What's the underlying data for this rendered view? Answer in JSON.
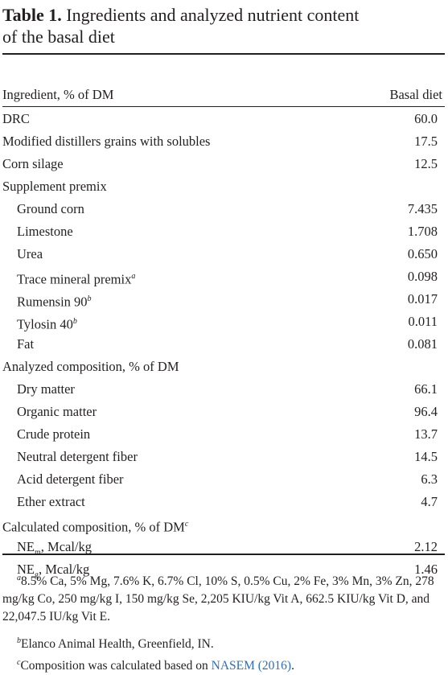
{
  "caption": {
    "label": "Table 1.",
    "title_line1": "Ingredients and analyzed nutrient content",
    "title_line2": "of the basal diet"
  },
  "header": {
    "col1": "Ingredient, % of DM",
    "col2": "Basal diet"
  },
  "rows": [
    {
      "label": "DRC",
      "value": "60.0",
      "indent": false
    },
    {
      "label": "Modified distillers grains with solubles",
      "value": "17.5",
      "indent": false
    },
    {
      "label": "Corn silage",
      "value": "12.5",
      "indent": false
    },
    {
      "label": "Supplement premix",
      "value": "",
      "indent": false
    },
    {
      "label": "Ground corn",
      "value": "7.435",
      "indent": true
    },
    {
      "label": "Limestone",
      "value": "1.708",
      "indent": true
    },
    {
      "label": "Urea",
      "value": "0.650",
      "indent": true
    },
    {
      "label": "Trace mineral premix",
      "sup": "a",
      "value": "0.098",
      "indent": true
    },
    {
      "label": "Rumensin 90",
      "sup": "b",
      "value": "0.017",
      "indent": true
    },
    {
      "label": "Tylosin 40",
      "sup": "b",
      "value": "0.011",
      "indent": true
    },
    {
      "label": "Fat",
      "value": "0.081",
      "indent": true
    },
    {
      "label": "Analyzed composition, % of DM",
      "value": "",
      "indent": false
    },
    {
      "label": "Dry matter",
      "value": "66.1",
      "indent": true
    },
    {
      "label": "Organic matter",
      "value": "96.4",
      "indent": true
    },
    {
      "label": "Crude protein",
      "value": "13.7",
      "indent": true
    },
    {
      "label": "Neutral detergent fiber",
      "value": "14.5",
      "indent": true
    },
    {
      "label": "Acid detergent fiber",
      "value": "6.3",
      "indent": true
    },
    {
      "label": "Ether extract",
      "value": "4.7",
      "indent": true
    },
    {
      "label": "Calculated composition, % of DM",
      "sup": "c",
      "value": "",
      "indent": false
    },
    {
      "label": "NE",
      "sub": "m",
      "suffix": ", Mcal/kg",
      "value": "2.12",
      "indent": true
    },
    {
      "label": "NE",
      "sub": "g",
      "suffix": ", Mcal/kg",
      "value": "1.46",
      "indent": true
    }
  ],
  "footnotes": {
    "a_mark": "a",
    "a_text": "8.5% Ca, 5% Mg, 7.6% K, 6.7% Cl, 10% S, 0.5% Cu, 2% Fe, 3% Mn, 3% Zn, 278 mg/kg Co, 250 mg/kg I, 150 mg/kg Se, 2,205 KIU/kg Vit A, 662.5 KIU/kg Vit D, and 22,047.5 IU/kg Vit E.",
    "b_mark": "b",
    "b_text": "Elanco Animal Health, Greenfield, IN.",
    "c_mark": "c",
    "c_text": "Composition was calculated based on ",
    "c_link": "NASEM (2016)",
    "c_end": "."
  }
}
